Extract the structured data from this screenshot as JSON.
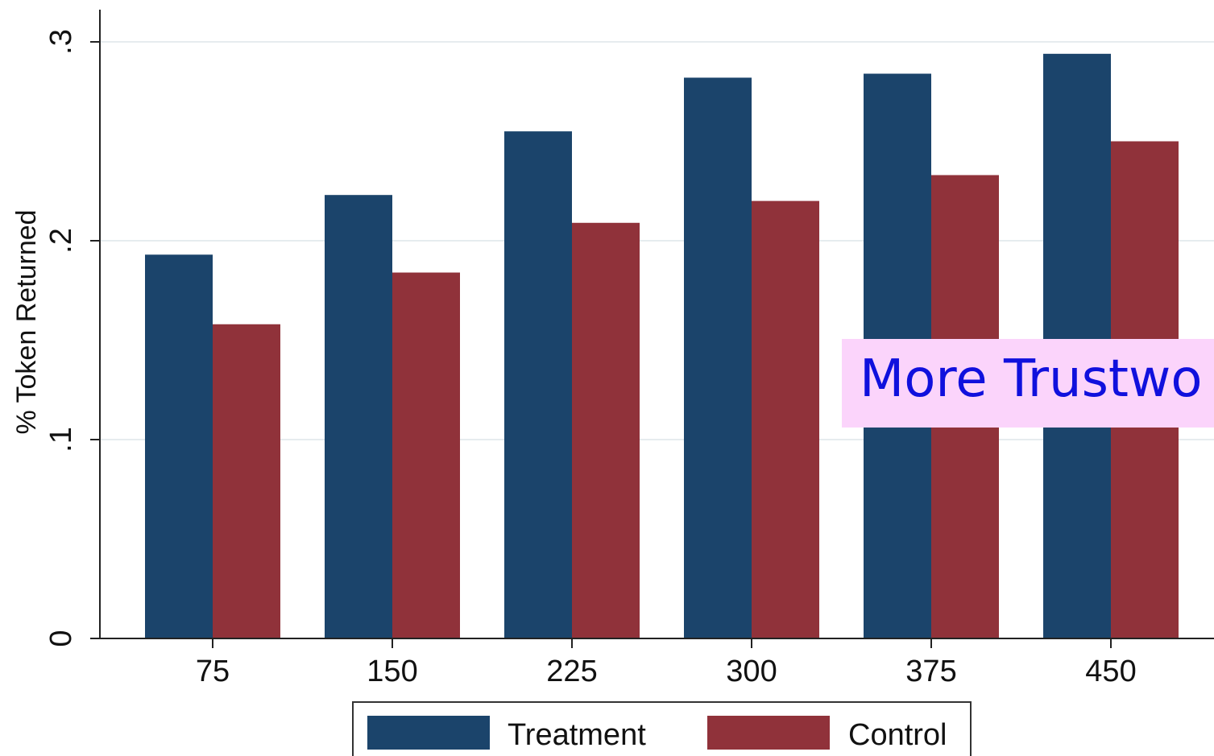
{
  "chart_data": {
    "type": "bar",
    "title": "",
    "xlabel": "",
    "ylabel": "% Token Returned",
    "ylim": [
      0,
      0.3
    ],
    "yticks": [
      {
        "value": 0,
        "label": "0"
      },
      {
        "value": 0.1,
        "label": ".1"
      },
      {
        "value": 0.2,
        "label": ".2"
      },
      {
        "value": 0.3,
        "label": ".3"
      }
    ],
    "categories": [
      "75",
      "150",
      "225",
      "300",
      "375",
      "450"
    ],
    "series": [
      {
        "name": "Treatment",
        "color": "#1b446b",
        "values": [
          0.193,
          0.223,
          0.255,
          0.282,
          0.284,
          0.294
        ]
      },
      {
        "name": "Control",
        "color": "#90323a",
        "values": [
          0.158,
          0.184,
          0.209,
          0.22,
          0.233,
          0.25
        ]
      }
    ],
    "grid": true,
    "legend_position": "bottom"
  },
  "annotation": {
    "text": "More Trustwo",
    "background": "#fbd4fb",
    "color": "#1010dd"
  }
}
